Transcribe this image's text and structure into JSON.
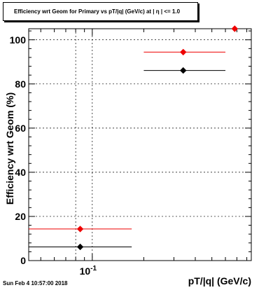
{
  "title": "Efficiency wrt Geom for Primary vs pT/|q| (GeV/c) at | η | <= 1.0",
  "timestamp": "Sun Feb  4 10:57:00 2018",
  "colors": {
    "series_red": "#ee0000",
    "series_black": "#000000"
  },
  "chart_data": {
    "type": "scatter",
    "xlabel": "pT/|q| (GeV/c)",
    "ylabel": "Efficiency wrt Geom (%)",
    "x_scale": "log",
    "xlim": [
      0.0425,
      0.85
    ],
    "ylim": [
      0,
      105
    ],
    "x_tick_labels": [
      "10^{-1}"
    ],
    "y_tick_labels": [
      "0",
      "20",
      "40",
      "60",
      "80",
      "100"
    ],
    "grid": true,
    "legend": "none",
    "series": [
      {
        "color": "#ee0000",
        "points": [
          {
            "x": 0.085,
            "xlow": 0.0425,
            "xhigh": 0.17,
            "y": 14.3
          },
          {
            "x": 0.34,
            "xlow": 0.2,
            "xhigh": 0.6,
            "y": 94.4
          },
          {
            "x": 0.68,
            "xlow": 0.68,
            "xhigh": 0.68,
            "y": 105
          }
        ]
      },
      {
        "color": "#000000",
        "points": [
          {
            "x": 0.085,
            "xlow": 0.0425,
            "xhigh": 0.17,
            "y": 6.2
          },
          {
            "x": 0.34,
            "xlow": 0.2,
            "xhigh": 0.6,
            "y": 86.1
          }
        ]
      }
    ]
  }
}
